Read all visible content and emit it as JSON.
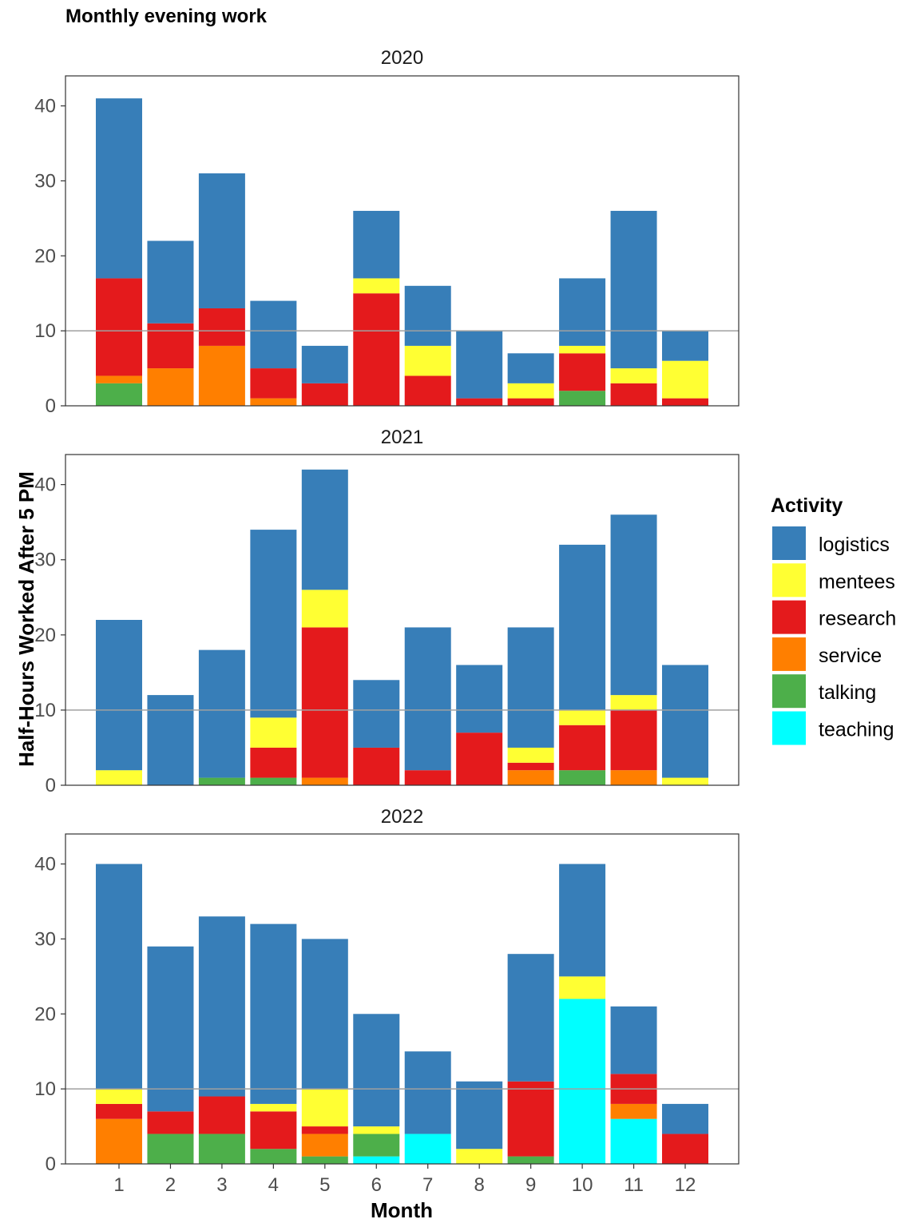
{
  "chart_data": {
    "type": "bar",
    "stacked": true,
    "title": "Monthly evening work",
    "xlabel": "Month",
    "ylabel": "Half-Hours Worked After 5 PM",
    "categories": [
      "1",
      "2",
      "3",
      "4",
      "5",
      "6",
      "7",
      "8",
      "9",
      "10",
      "11",
      "12"
    ],
    "ylim": [
      0,
      44
    ],
    "yticks": [
      0,
      10,
      20,
      30,
      40
    ],
    "reference_line": 10,
    "legend": {
      "title": "Activity",
      "position": "right"
    },
    "stack_order_bottom_to_top": [
      "teaching",
      "talking",
      "service",
      "research",
      "mentees",
      "logistics"
    ],
    "series_names": [
      "logistics",
      "mentees",
      "research",
      "service",
      "talking",
      "teaching"
    ],
    "colors": {
      "logistics": "#377EB8",
      "mentees": "#FFFF33",
      "research": "#E41A1C",
      "service": "#FF7F00",
      "talking": "#4DAF4A",
      "teaching": "#00FFFF"
    },
    "panels": [
      {
        "label": "2020",
        "series": {
          "teaching": [
            0,
            0,
            0,
            0,
            0,
            0,
            0,
            0,
            0,
            0,
            0,
            0
          ],
          "talking": [
            3,
            0,
            0,
            0,
            0,
            0,
            0,
            0,
            0,
            2,
            0,
            0
          ],
          "service": [
            1,
            5,
            8,
            1,
            0,
            0,
            0,
            0,
            0,
            0,
            0,
            0
          ],
          "research": [
            13,
            6,
            5,
            4,
            3,
            15,
            4,
            1,
            1,
            5,
            3,
            1
          ],
          "mentees": [
            0,
            0,
            0,
            0,
            0,
            2,
            4,
            0,
            2,
            1,
            2,
            5
          ],
          "logistics": [
            24,
            11,
            18,
            9,
            5,
            9,
            8,
            9,
            4,
            9,
            21,
            4
          ]
        }
      },
      {
        "label": "2021",
        "series": {
          "teaching": [
            0,
            0,
            0,
            0,
            0,
            0,
            0,
            0,
            0,
            0,
            0,
            0
          ],
          "talking": [
            0,
            0,
            1,
            1,
            0,
            0,
            0,
            0,
            0,
            2,
            0,
            0
          ],
          "service": [
            0,
            0,
            0,
            0,
            1,
            0,
            0,
            0,
            2,
            0,
            2,
            0
          ],
          "research": [
            0,
            0,
            0,
            4,
            20,
            5,
            2,
            7,
            1,
            6,
            8,
            0
          ],
          "mentees": [
            2,
            0,
            0,
            4,
            5,
            0,
            0,
            0,
            2,
            2,
            2,
            1
          ],
          "logistics": [
            20,
            12,
            17,
            25,
            16,
            9,
            19,
            9,
            16,
            22,
            24,
            15
          ]
        }
      },
      {
        "label": "2022",
        "series": {
          "teaching": [
            0,
            0,
            0,
            0,
            0,
            1,
            4,
            0,
            0,
            22,
            6,
            0
          ],
          "talking": [
            0,
            4,
            4,
            2,
            1,
            3,
            0,
            0,
            1,
            0,
            0,
            0
          ],
          "service": [
            6,
            0,
            0,
            0,
            3,
            0,
            0,
            0,
            0,
            0,
            2,
            0
          ],
          "research": [
            2,
            3,
            5,
            5,
            1,
            0,
            0,
            0,
            10,
            0,
            4,
            4
          ],
          "mentees": [
            2,
            0,
            0,
            1,
            5,
            1,
            0,
            2,
            0,
            3,
            0,
            0
          ],
          "logistics": [
            30,
            22,
            24,
            24,
            20,
            15,
            11,
            9,
            17,
            15,
            9,
            4
          ]
        }
      }
    ]
  }
}
